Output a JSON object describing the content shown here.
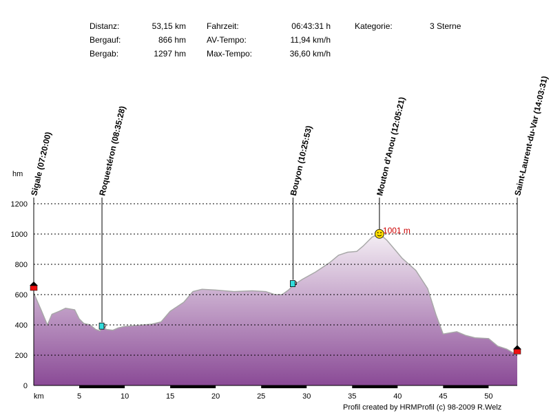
{
  "stats": {
    "distanz_label": "Distanz:",
    "distanz_value": "53,15 km",
    "bergauf_label": "Bergauf:",
    "bergauf_value": "866 hm",
    "bergab_label": "Bergab:",
    "bergab_value": "1297 hm",
    "fahrzeit_label": "Fahrzeit:",
    "fahrzeit_value": "06:43:31 h",
    "avtempo_label": "AV-Tempo:",
    "avtempo_value": "11,94 km/h",
    "maxtempo_label": "Max-Tempo:",
    "maxtempo_value": "36,60 km/h",
    "kategorie_label": "Kategorie:",
    "kategorie_value": "3 Sterne"
  },
  "footer": "Profil created by HRMProfil (c) 98-2009 R.Welz",
  "chart_data": {
    "type": "area",
    "ylabel": "hm",
    "xlabel": "km",
    "xlim": [
      0,
      53.15
    ],
    "ylim": [
      0,
      1200
    ],
    "x_ticks": [
      5,
      10,
      15,
      20,
      25,
      30,
      35,
      40,
      45,
      50
    ],
    "y_ticks": [
      0,
      200,
      400,
      600,
      800,
      1000,
      1200
    ],
    "grid": true,
    "colors": {
      "fill_top": "#f4eef4",
      "fill_bottom": "#8a4a96",
      "outline": "#a8a8a8",
      "grid": "#000000",
      "peak_label": "#cc0000"
    },
    "max_label": "1001 m",
    "max_point": {
      "x": 38.0,
      "y": 1001
    },
    "profile": [
      [
        0,
        610
      ],
      [
        0.8,
        500
      ],
      [
        1.5,
        400
      ],
      [
        2.0,
        470
      ],
      [
        2.8,
        490
      ],
      [
        3.5,
        510
      ],
      [
        4.5,
        500
      ],
      [
        5.0,
        440
      ],
      [
        5.5,
        410
      ],
      [
        6.2,
        400
      ],
      [
        6.8,
        370
      ],
      [
        7.3,
        360
      ],
      [
        7.5,
        390
      ],
      [
        8.0,
        370
      ],
      [
        8.7,
        365
      ],
      [
        9.3,
        380
      ],
      [
        10.0,
        390
      ],
      [
        11.0,
        395
      ],
      [
        12.0,
        400
      ],
      [
        13.0,
        405
      ],
      [
        14.0,
        420
      ],
      [
        15.0,
        490
      ],
      [
        16.5,
        550
      ],
      [
        17.5,
        620
      ],
      [
        18.5,
        635
      ],
      [
        20.0,
        630
      ],
      [
        22.0,
        620
      ],
      [
        24.0,
        625
      ],
      [
        25.5,
        620
      ],
      [
        26.5,
        600
      ],
      [
        27.3,
        600
      ],
      [
        28.0,
        630
      ],
      [
        28.5,
        660
      ],
      [
        29.5,
        700
      ],
      [
        31.0,
        750
      ],
      [
        32.5,
        810
      ],
      [
        33.5,
        860
      ],
      [
        34.5,
        880
      ],
      [
        35.5,
        885
      ],
      [
        36.2,
        920
      ],
      [
        37.2,
        980
      ],
      [
        38.0,
        1001
      ],
      [
        38.8,
        960
      ],
      [
        39.8,
        890
      ],
      [
        40.5,
        840
      ],
      [
        42.0,
        760
      ],
      [
        43.3,
        640
      ],
      [
        44.2,
        470
      ],
      [
        45.0,
        340
      ],
      [
        46.5,
        355
      ],
      [
        47.5,
        330
      ],
      [
        48.5,
        315
      ],
      [
        50.0,
        310
      ],
      [
        51.0,
        260
      ],
      [
        52.0,
        240
      ],
      [
        53.15,
        200
      ]
    ],
    "waypoints": [
      {
        "label": "Sigale (07:20:00)",
        "x": 0.0,
        "y": 650,
        "marker": "house"
      },
      {
        "label": "Roquestéron (08:35:28)",
        "x": 7.5,
        "y": 390,
        "marker": "cup"
      },
      {
        "label": "Bouyon (10:25:53)",
        "x": 28.5,
        "y": 670,
        "marker": "cup"
      },
      {
        "label": "Mouton d'Anou (12:05:21)",
        "x": 38.0,
        "y": 1001,
        "marker": "smiley"
      },
      {
        "label": "Saint-Laurent-du-Var (14:03:31)",
        "x": 53.15,
        "y": 230,
        "marker": "house"
      }
    ]
  }
}
